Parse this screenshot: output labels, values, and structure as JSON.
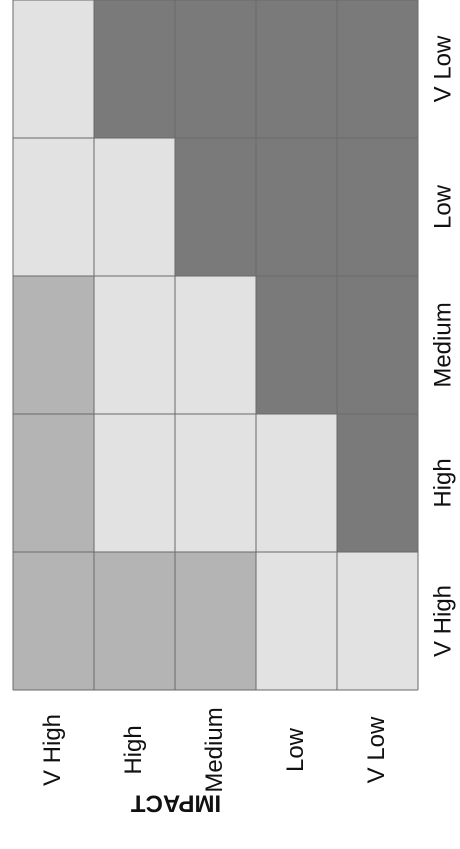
{
  "chart_data": {
    "type": "heatmap",
    "title": "",
    "xlabel": "",
    "ylabel": "IMPACT",
    "x_categories": [
      "V Low",
      "Low",
      "Medium",
      "High",
      "V High"
    ],
    "y_categories": [
      "V High",
      "High",
      "Medium",
      "Low",
      "V Low"
    ],
    "level_names": [
      "light",
      "medium",
      "dark"
    ],
    "levels": [
      [
        0,
        2,
        2,
        2,
        2
      ],
      [
        0,
        0,
        2,
        2,
        2
      ],
      [
        1,
        0,
        0,
        2,
        2
      ],
      [
        1,
        0,
        0,
        0,
        2
      ],
      [
        1,
        1,
        1,
        0,
        0
      ]
    ],
    "colors": {
      "light": "#e2e2e2",
      "medium": "#b4b4b4",
      "dark": "#7a7a7a",
      "grid": "#6a6a6a",
      "text": "#111111"
    }
  }
}
